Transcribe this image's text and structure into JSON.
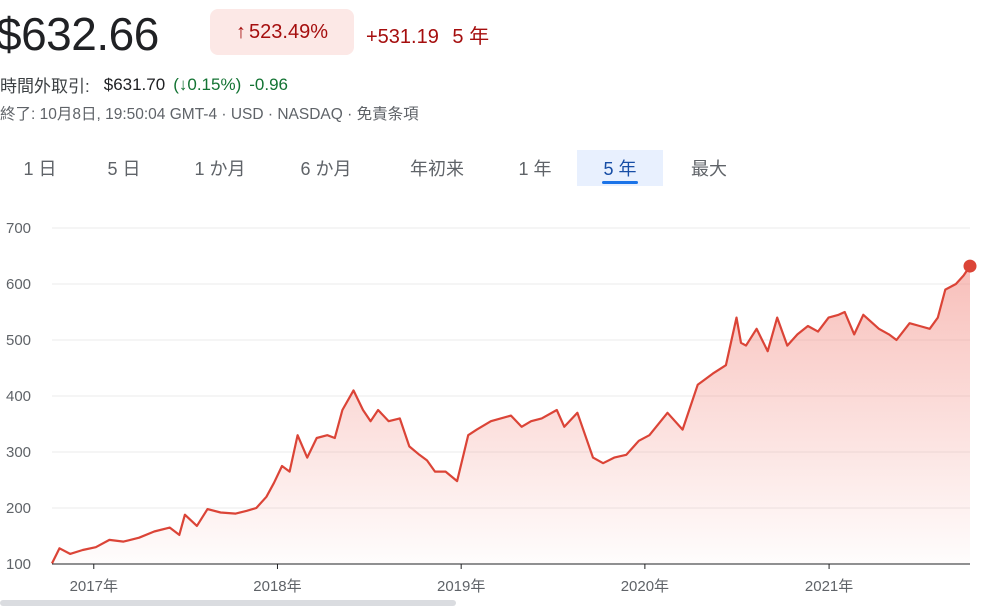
{
  "header": {
    "price": "$632.66",
    "change_arrow": "↑",
    "change_pct": "523.49%",
    "change_abs": "+531.19",
    "change_period": "5 年"
  },
  "after_hours": {
    "label": "時間外取引:",
    "price": "$631.70",
    "open_paren": "(",
    "arrow": "↓",
    "pct": "0.15%",
    "close_paren": ")",
    "abs": "-0.96"
  },
  "meta": "終了: 10月8日, 19:50:04 GMT-4 · USD · NASDAQ · 免責条項",
  "tabs": [
    {
      "label": "1 日"
    },
    {
      "label": "5 日"
    },
    {
      "label": "1 か月"
    },
    {
      "label": "6 か月"
    },
    {
      "label": "年初来"
    },
    {
      "label": "1 年"
    },
    {
      "label": "5 年"
    },
    {
      "label": "最大"
    }
  ],
  "active_tab": 6,
  "colors": {
    "line": "#db4437",
    "area": "#f28b82",
    "down": "#a50e0e",
    "up": "#137333",
    "grid": "#ebebeb",
    "active_tab_bg": "#e8f0fe"
  },
  "chart_data": {
    "type": "area",
    "title": "",
    "xlabel": "",
    "ylabel": "",
    "ylim": [
      100,
      700
    ],
    "yticks": [
      "100",
      "200",
      "300",
      "400",
      "500",
      "600",
      "700"
    ],
    "xlim": [
      "2016-10-10",
      "2021-10-08"
    ],
    "xticks": [
      {
        "label": "2017年",
        "date": "2017-01-01"
      },
      {
        "label": "2018年",
        "date": "2018-01-01"
      },
      {
        "label": "2019年",
        "date": "2019-01-01"
      },
      {
        "label": "2020年",
        "date": "2020-01-01"
      },
      {
        "label": "2021年",
        "date": "2021-01-01"
      }
    ],
    "grid": true,
    "endpoint_marker": true,
    "series": [
      {
        "x": [
          "2016-10-10",
          "2016-10-25",
          "2016-11-15",
          "2016-12-10",
          "2017-01-05",
          "2017-02-01",
          "2017-03-01",
          "2017-04-01",
          "2017-05-01",
          "2017-06-01",
          "2017-06-20",
          "2017-07-01",
          "2017-07-25",
          "2017-08-15",
          "2017-09-10",
          "2017-10-10",
          "2017-11-01",
          "2017-11-20",
          "2017-12-10",
          "2017-12-25",
          "2018-01-10",
          "2018-01-25",
          "2018-02-10",
          "2018-03-01",
          "2018-03-20",
          "2018-04-10",
          "2018-04-25",
          "2018-05-10",
          "2018-06-01",
          "2018-06-20",
          "2018-07-05",
          "2018-07-20",
          "2018-08-10",
          "2018-09-01",
          "2018-09-20",
          "2018-10-10",
          "2018-10-25",
          "2018-11-10",
          "2018-12-01",
          "2018-12-24",
          "2019-01-15",
          "2019-02-01",
          "2019-03-01",
          "2019-04-10",
          "2019-05-01",
          "2019-05-20",
          "2019-06-10",
          "2019-07-10",
          "2019-07-25",
          "2019-08-20",
          "2019-09-20",
          "2019-10-10",
          "2019-11-01",
          "2019-11-25",
          "2019-12-20",
          "2020-01-10",
          "2020-02-15",
          "2020-03-16",
          "2020-04-15",
          "2020-05-15",
          "2020-06-10",
          "2020-07-01",
          "2020-07-10",
          "2020-07-20",
          "2020-08-10",
          "2020-09-01",
          "2020-09-20",
          "2020-10-10",
          "2020-10-30",
          "2020-11-20",
          "2020-12-10",
          "2020-12-31",
          "2021-01-20",
          "2021-02-01",
          "2021-02-20",
          "2021-03-10",
          "2021-04-10",
          "2021-04-30",
          "2021-05-15",
          "2021-06-10",
          "2021-06-30",
          "2021-07-20",
          "2021-08-05",
          "2021-08-20",
          "2021-09-10",
          "2021-09-25",
          "2021-10-08"
        ],
        "values": [
          101,
          128,
          118,
          125,
          130,
          143,
          140,
          147,
          158,
          165,
          152,
          188,
          168,
          198,
          192,
          190,
          195,
          200,
          220,
          245,
          275,
          265,
          330,
          290,
          325,
          330,
          325,
          375,
          410,
          375,
          355,
          375,
          355,
          360,
          310,
          295,
          285,
          265,
          265,
          248,
          330,
          340,
          355,
          365,
          345,
          355,
          360,
          375,
          345,
          370,
          290,
          280,
          290,
          295,
          320,
          330,
          370,
          340,
          420,
          440,
          455,
          540,
          495,
          490,
          520,
          480,
          540,
          490,
          510,
          525,
          515,
          540,
          545,
          550,
          510,
          545,
          520,
          510,
          500,
          530,
          525,
          520,
          540,
          590,
          600,
          615,
          632
        ]
      }
    ]
  }
}
